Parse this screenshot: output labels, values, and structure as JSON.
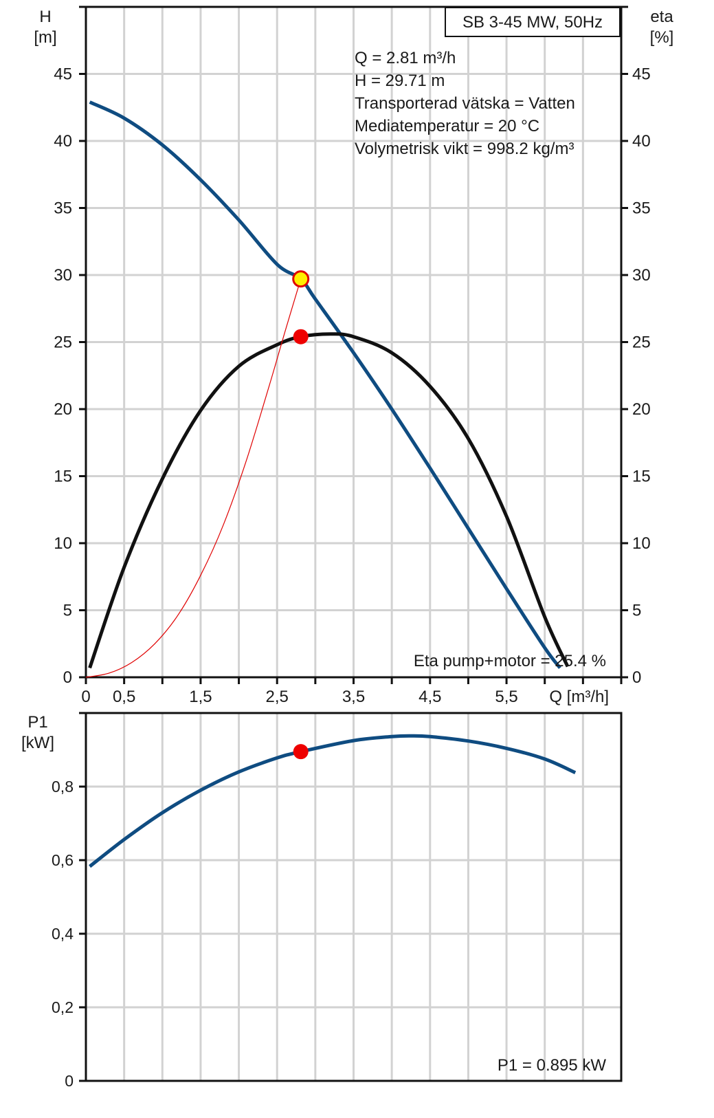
{
  "chart_data": [
    {
      "type": "line",
      "title": "SB 3-45 MW, 50Hz",
      "xlabel": "Q [m³/h]",
      "ylabel": "H\n[m]",
      "ylabel_right": "eta\n[%]",
      "xlim": [
        0,
        7
      ],
      "ylim": [
        0,
        50
      ],
      "ylim_right": [
        0,
        50
      ],
      "x_tick_labels": [
        "0",
        "0,5",
        "1,5",
        "2,5",
        "3,5",
        "4,5",
        "5,5"
      ],
      "x_tick_values": [
        0,
        0.5,
        1.5,
        2.5,
        3.5,
        4.5,
        5.5
      ],
      "y_tick_labels": [
        "0",
        "5",
        "10",
        "15",
        "20",
        "25",
        "30",
        "35",
        "40",
        "45"
      ],
      "grid": true,
      "info": [
        "Q = 2.81 m³/h",
        "H = 29.71 m",
        "Transporterad vätska = Vatten",
        "Mediatemperatur = 20 °C",
        "Volymetrisk vikt = 998.2 kg/m³"
      ],
      "footer_label": "Eta pump+motor = 25.4 %",
      "series": [
        {
          "role": "H",
          "color": "#0f4c81",
          "x": [
            0.05,
            0.5,
            1.0,
            1.5,
            2.0,
            2.5,
            2.81,
            3.0,
            3.5,
            4.0,
            4.5,
            5.0,
            5.5,
            6.0,
            6.2
          ],
          "y": [
            42.9,
            41.7,
            39.7,
            37.1,
            34.1,
            30.8,
            29.71,
            28.2,
            24.2,
            20.0,
            15.6,
            11.1,
            6.6,
            2.2,
            0.7
          ]
        },
        {
          "role": "eta",
          "color": "#111111",
          "x": [
            0.05,
            0.5,
            1.0,
            1.5,
            2.0,
            2.5,
            2.81,
            3.2,
            3.5,
            4.0,
            4.5,
            5.0,
            5.5,
            6.0,
            6.3
          ],
          "y": [
            0.7,
            8.2,
            14.8,
            19.9,
            23.2,
            24.8,
            25.4,
            25.6,
            25.4,
            24.2,
            21.7,
            17.8,
            12.0,
            4.5,
            0.8
          ]
        },
        {
          "role": "system",
          "color": "#e00000",
          "x": [
            0.0,
            0.3,
            0.6,
            0.9,
            1.2,
            1.5,
            1.8,
            2.1,
            2.4,
            2.6,
            2.81
          ],
          "y": [
            0.0,
            0.3,
            1.1,
            2.5,
            4.6,
            7.6,
            11.4,
            16.2,
            21.8,
            25.7,
            29.71
          ]
        }
      ],
      "duty_points": [
        {
          "x": 2.81,
          "y": 29.71,
          "fill": "#ffee00",
          "stroke": "#e00000"
        },
        {
          "x": 2.81,
          "y": 25.4,
          "fill": "#ee0000",
          "stroke": "#ee0000"
        }
      ]
    },
    {
      "type": "line",
      "ylabel": "P1\n[kW]",
      "xlim": [
        0,
        7
      ],
      "ylim": [
        0,
        1.0
      ],
      "y_tick_labels": [
        "0",
        "0,2",
        "0,4",
        "0,6",
        "0,8"
      ],
      "y_tick_values": [
        0,
        0.2,
        0.4,
        0.6,
        0.8
      ],
      "grid": true,
      "footer_label": "P1 = 0.895 kW",
      "series": [
        {
          "role": "P1",
          "color": "#0f4c81",
          "x": [
            0.05,
            0.5,
            1.0,
            1.5,
            2.0,
            2.5,
            2.81,
            3.5,
            4.0,
            4.25,
            4.5,
            5.0,
            5.5,
            6.0,
            6.4
          ],
          "y": [
            0.583,
            0.656,
            0.729,
            0.79,
            0.84,
            0.878,
            0.895,
            0.925,
            0.936,
            0.938,
            0.936,
            0.924,
            0.904,
            0.875,
            0.838
          ]
        }
      ],
      "duty_points": [
        {
          "x": 2.81,
          "y": 0.895,
          "fill": "#ee0000",
          "stroke": "#ee0000"
        }
      ]
    }
  ]
}
